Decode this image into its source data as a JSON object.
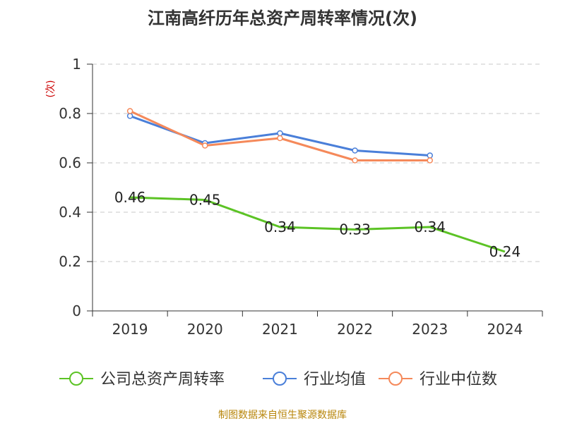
{
  "chart_data": {
    "type": "line",
    "title": "江南高纤历年总资产周转率情况(次)",
    "ylabel": "(次)",
    "xlabel": "",
    "categories": [
      "2019",
      "2020",
      "2021",
      "2022",
      "2023",
      "2024"
    ],
    "ylim": [
      0,
      1
    ],
    "yticks": [
      "0",
      "0.2",
      "0.4",
      "0.6",
      "0.8",
      "1"
    ],
    "grid": true,
    "legend_position": "bottom",
    "series": [
      {
        "name": "公司总资产周转率",
        "color": "#5cc325",
        "values": [
          0.46,
          0.45,
          0.34,
          0.33,
          0.34,
          0.24
        ],
        "labels": [
          "0.46",
          "0.45",
          "0.34",
          "0.33",
          "0.34",
          "0.24"
        ],
        "markers": false
      },
      {
        "name": "行业均值",
        "color": "#4a7fd9",
        "values": [
          0.79,
          0.68,
          0.72,
          0.65,
          0.63,
          null
        ],
        "markers": true
      },
      {
        "name": "行业中位数",
        "color": "#f5895a",
        "values": [
          0.81,
          0.67,
          0.7,
          0.61,
          0.61,
          null
        ],
        "markers": true
      }
    ]
  },
  "source": "制图数据来自恒生聚源数据库"
}
